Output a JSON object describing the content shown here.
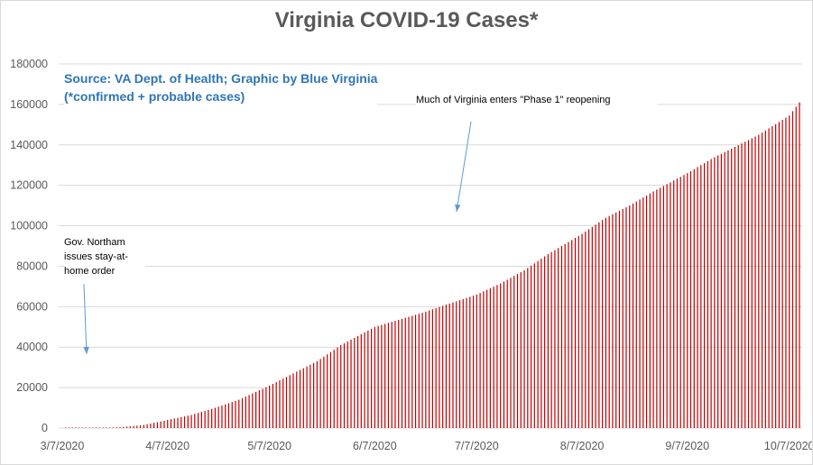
{
  "chart_data": {
    "type": "bar",
    "title": "Virginia COVID-19 Cases*",
    "note_lines": [
      "Source: VA Dept. of Health; Graphic by Blue Virginia",
      "(*confirmed + probable cases)"
    ],
    "xlabel": "",
    "ylabel": "",
    "ylim": [
      0,
      180000
    ],
    "y_ticks": [
      "0",
      "20000",
      "40000",
      "60000",
      "80000",
      "100000",
      "120000",
      "140000",
      "160000",
      "180000"
    ],
    "x_tick_labels": [
      "3/7/2020",
      "4/7/2020",
      "5/7/2020",
      "6/7/2020",
      "7/7/2020",
      "8/7/2020",
      "9/7/2020",
      "10/7/2020"
    ],
    "x_range": [
      "2020-03-07",
      "2020-10-10"
    ],
    "bar_interval_days": 1,
    "series": [
      {
        "color": "#c00000",
        "anchors": [
          [
            "2020-03-07",
            0
          ],
          [
            "2020-03-17",
            80
          ],
          [
            "2020-03-24",
            400
          ],
          [
            "2020-03-31",
            1500
          ],
          [
            "2020-04-07",
            4000
          ],
          [
            "2020-04-14",
            6500
          ],
          [
            "2020-04-21",
            10000
          ],
          [
            "2020-04-28",
            14000
          ],
          [
            "2020-05-07",
            21000
          ],
          [
            "2020-05-14",
            27000
          ],
          [
            "2020-05-21",
            33000
          ],
          [
            "2020-05-28",
            41000
          ],
          [
            "2020-06-07",
            50000
          ],
          [
            "2020-06-14",
            53500
          ],
          [
            "2020-06-21",
            57000
          ],
          [
            "2020-06-28",
            61000
          ],
          [
            "2020-07-07",
            66000
          ],
          [
            "2020-07-14",
            71500
          ],
          [
            "2020-07-21",
            78000
          ],
          [
            "2020-07-28",
            86000
          ],
          [
            "2020-08-07",
            96000
          ],
          [
            "2020-08-14",
            104000
          ],
          [
            "2020-08-21",
            110000
          ],
          [
            "2020-08-28",
            117000
          ],
          [
            "2020-09-07",
            126000
          ],
          [
            "2020-09-14",
            133000
          ],
          [
            "2020-09-21",
            139000
          ],
          [
            "2020-09-28",
            145000
          ],
          [
            "2020-10-07",
            154500
          ],
          [
            "2020-10-10",
            161000
          ]
        ]
      }
    ],
    "grid": true,
    "legend": "none",
    "annotations": [
      {
        "text": "Gov. Northam issues stay-at-home order",
        "points_to": "2020-03-30"
      },
      {
        "text": "Much of Virginia enters \"Phase 1\" reopening",
        "points_to": "2020-05-15"
      }
    ]
  },
  "colors": {
    "bars": "#c00000",
    "arrow": "#5b9bd5",
    "grid": "#d9d9d9",
    "axis_text": "#595959",
    "note": "#2e75b6"
  }
}
